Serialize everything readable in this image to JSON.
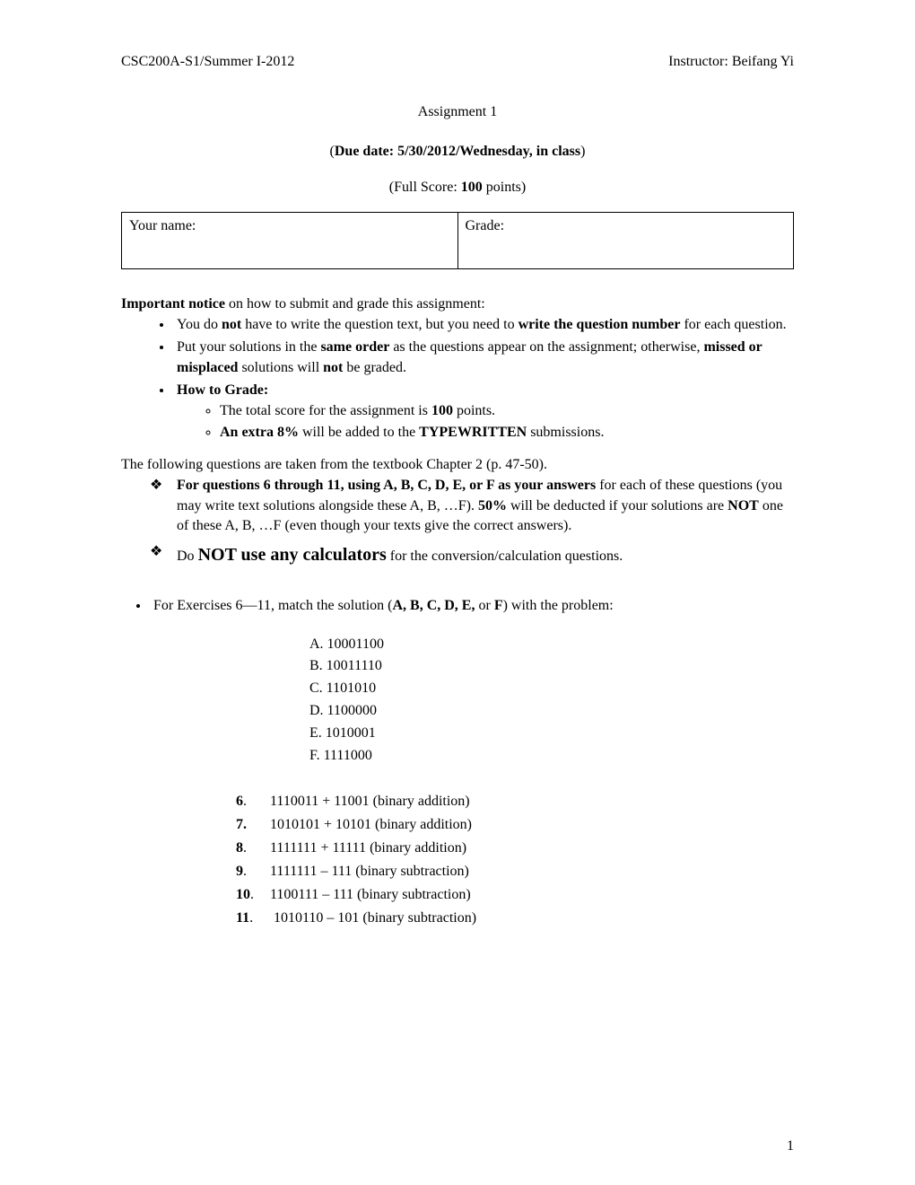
{
  "header": {
    "left": "CSC200A-S1/Summer I-2012",
    "right": "Instructor: Beifang Yi"
  },
  "title": "Assignment 1",
  "due_prefix": "(",
  "due_label": "Due date: 5/30/2012/Wednesday, in class",
  "due_suffix": ")",
  "full_score_prefix": "(Full Score: ",
  "full_score_value": "100",
  "full_score_suffix": " points)",
  "name_cell": "Your name:",
  "grade_cell": "Grade:",
  "notice_lead_bold": "Important notice",
  "notice_lead_rest": " on how to submit and grade this assignment:",
  "bullets": {
    "b1_a": "You do ",
    "b1_not": "not",
    "b1_b": " have to write the question text, but you need to ",
    "b1_bold": "write the question number",
    "b1_c": " for each question.",
    "b2_a": "Put your solutions in the ",
    "b2_bold1": "same order",
    "b2_b": " as the questions appear on the assignment; otherwise, ",
    "b2_bold2": "missed or misplaced",
    "b2_c": " solutions will ",
    "b2_bold3": "not",
    "b2_d": " be graded.",
    "b3": "How to Grade:",
    "b3_sub1_a": "The total score for the assignment is ",
    "b3_sub1_bold": "100",
    "b3_sub1_b": " points.",
    "b3_sub2_a": "An extra 8%",
    "b3_sub2_b": " will be added to the ",
    "b3_sub2_bold": "TYPEWRITTEN",
    "b3_sub2_c": " submissions."
  },
  "textbook_line": "The following questions are taken from the textbook Chapter 2 (p. 47-50).",
  "diamonds": {
    "d1_bold": "For questions 6 through 11, using A, B, C, D, E, or F as your answers",
    "d1_a": " for each of these questions (you may write text solutions alongside these A, B, …F). ",
    "d1_bold2": "50%",
    "d1_b": " will be deducted if your solutions are ",
    "d1_bold3": "NOT",
    "d1_c": " one of these A, B, …F (even though your texts give the correct answers).",
    "d2_a": "Do ",
    "d2_big": "NOT use any calculators",
    "d2_b": " for the conversion/calculation questions."
  },
  "exercise_lead_a": "For Exercises 6—11, match the solution (",
  "exercise_lead_bold": "A, B, C, D, E,",
  "exercise_lead_b": " or ",
  "exercise_lead_bold2": "F",
  "exercise_lead_c": ") with the problem:",
  "options": {
    "A": "A. 10001100",
    "B": "B. 10011110",
    "C": "C. 1101010",
    "D": "D. 1100000",
    "E": "E. 1010001",
    "F": "F. 1111000"
  },
  "problems": {
    "p6_num": "6",
    "p6_dot": ".",
    "p6_txt": "1110011 + 11001 (binary addition)",
    "p7_num": "7.",
    "p7_txt": "1010101 + 10101 (binary addition)",
    "p8_num": "8",
    "p8_dot": ".",
    "p8_txt": "1111111 + 11111 (binary addition)",
    "p9_num": "9",
    "p9_dot": ".",
    "p9_txt": "1111111 – 111 (binary subtraction)",
    "p10_num": "10",
    "p10_dot": ".",
    "p10_txt": "1100111 – 111 (binary subtraction)",
    "p11_num": "11",
    "p11_dot": ".",
    "p11_txt": "1010110 – 101 (binary subtraction)"
  },
  "page_number": "1"
}
